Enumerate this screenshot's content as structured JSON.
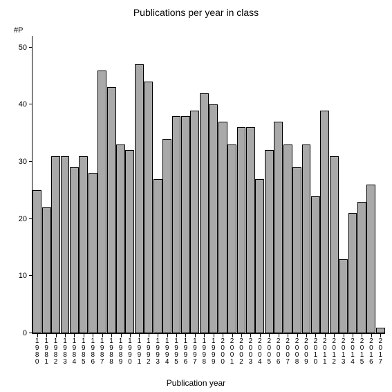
{
  "chart": {
    "type": "bar",
    "title": "Publications per year in class",
    "title_fontsize": 14,
    "ylabel_short": "#P",
    "xlabel": "Publication year",
    "label_fontsize": 12,
    "background_color": "#ffffff",
    "axis_color": "#000000",
    "bar_color": "#a9a9a9",
    "bar_border_color": "#000000",
    "bar_width": 0.96,
    "ylim": [
      0,
      52
    ],
    "ytick_step": 10,
    "yticks": [
      0,
      10,
      20,
      30,
      40,
      50
    ],
    "categories": [
      "1980",
      "1981",
      "1982",
      "1983",
      "1984",
      "1985",
      "1986",
      "1987",
      "1988",
      "1989",
      "1990",
      "1991",
      "1992",
      "1993",
      "1994",
      "1995",
      "1996",
      "1997",
      "1998",
      "1999",
      "2000",
      "2001",
      "2002",
      "2003",
      "2004",
      "2005",
      "2006",
      "2007",
      "2008",
      "2009",
      "2010",
      "2011",
      "2012",
      "2013",
      "2014",
      "2015",
      "2016",
      "2017"
    ],
    "values": [
      25,
      22,
      31,
      31,
      29,
      31,
      28,
      46,
      43,
      33,
      32,
      47,
      44,
      27,
      34,
      38,
      38,
      39,
      42,
      40,
      37,
      33,
      36,
      36,
      27,
      32,
      37,
      33,
      29,
      33,
      24,
      39,
      31,
      13,
      21,
      23,
      26,
      1
    ],
    "tick_fontsize": 11
  }
}
